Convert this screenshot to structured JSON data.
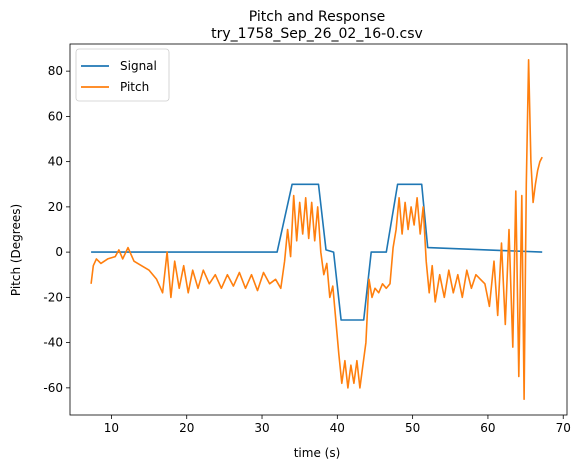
{
  "chart_data": {
    "type": "line",
    "title": "Pitch and Response",
    "subtitle": "try_1758_Sep_26_02_16-0.csv",
    "xlabel": "time (s)",
    "ylabel": "Pitch (Degrees)",
    "xlim": [
      4.5,
      70.5
    ],
    "ylim": [
      -72,
      92
    ],
    "xticks": [
      10,
      20,
      30,
      40,
      50,
      60,
      70
    ],
    "yticks": [
      -60,
      -40,
      -20,
      0,
      20,
      40,
      60,
      80
    ],
    "grid": false,
    "legend_position": "top-left",
    "series": [
      {
        "name": "Signal",
        "color": "#1f77b4",
        "x": [
          7.3,
          32,
          34,
          37.5,
          38.5,
          39.5,
          40.5,
          43.5,
          44.5,
          46.5,
          48,
          51.2,
          52,
          67.2
        ],
        "y": [
          0,
          0,
          30,
          30,
          1,
          0,
          -30,
          -30,
          0,
          0,
          30,
          30,
          2,
          0
        ]
      },
      {
        "name": "Pitch",
        "color": "#ff7f0e",
        "x": [
          7.3,
          7.6,
          8.0,
          8.6,
          9.5,
          10.5,
          11.0,
          11.5,
          12.2,
          13.0,
          14.0,
          15.0,
          16.0,
          16.8,
          17.4,
          17.9,
          18.4,
          19.0,
          19.6,
          20.2,
          20.8,
          21.5,
          22.2,
          23.0,
          23.8,
          24.6,
          25.4,
          26.2,
          27.0,
          27.8,
          28.6,
          29.4,
          30.2,
          31.0,
          31.8,
          32.5,
          33.0,
          33.4,
          33.8,
          34.2,
          34.6,
          35.0,
          35.4,
          35.8,
          36.2,
          36.6,
          37.0,
          37.4,
          37.8,
          38.2,
          38.6,
          39.0,
          39.4,
          39.8,
          40.2,
          40.6,
          41.0,
          41.4,
          41.8,
          42.2,
          42.6,
          43.0,
          43.4,
          43.8,
          44.2,
          44.6,
          45.0,
          45.5,
          46.0,
          46.5,
          47.0,
          47.4,
          47.8,
          48.2,
          48.6,
          49.0,
          49.4,
          49.8,
          50.2,
          50.6,
          51.0,
          51.4,
          51.8,
          52.2,
          52.6,
          53.0,
          53.6,
          54.2,
          54.8,
          55.4,
          56.0,
          56.6,
          57.2,
          57.8,
          58.4,
          59.0,
          59.6,
          60.2,
          60.8,
          61.3,
          61.8,
          62.3,
          62.8,
          63.3,
          63.7,
          64.1,
          64.5,
          64.8,
          65.1,
          65.4,
          65.7,
          66.0,
          66.3,
          66.6,
          66.9,
          67.2
        ],
        "y": [
          -14,
          -6,
          -3,
          -5,
          -3,
          -2,
          1,
          -3,
          2,
          -4,
          -6,
          -8,
          -12,
          -18,
          0,
          -20,
          -4,
          -16,
          -6,
          -18,
          -8,
          -16,
          -8,
          -14,
          -10,
          -16,
          -10,
          -15,
          -9,
          -16,
          -10,
          -17,
          -9,
          -14,
          -12,
          -16,
          -4,
          10,
          -2,
          25,
          5,
          22,
          8,
          24,
          6,
          22,
          5,
          20,
          0,
          -10,
          -5,
          -20,
          -15,
          -30,
          -45,
          -58,
          -48,
          -60,
          -50,
          -58,
          -48,
          -60,
          -50,
          -40,
          -12,
          -20,
          -16,
          -18,
          -14,
          -16,
          -14,
          2,
          10,
          24,
          8,
          22,
          10,
          20,
          12,
          24,
          8,
          20,
          -4,
          -18,
          -6,
          -22,
          -10,
          -20,
          -8,
          -18,
          -10,
          -20,
          -8,
          -16,
          -10,
          -12,
          -14,
          -24,
          -4,
          -28,
          4,
          -32,
          10,
          -42,
          27,
          -55,
          25,
          -65,
          30,
          85,
          40,
          22,
          30,
          36,
          40,
          42
        ]
      }
    ]
  }
}
